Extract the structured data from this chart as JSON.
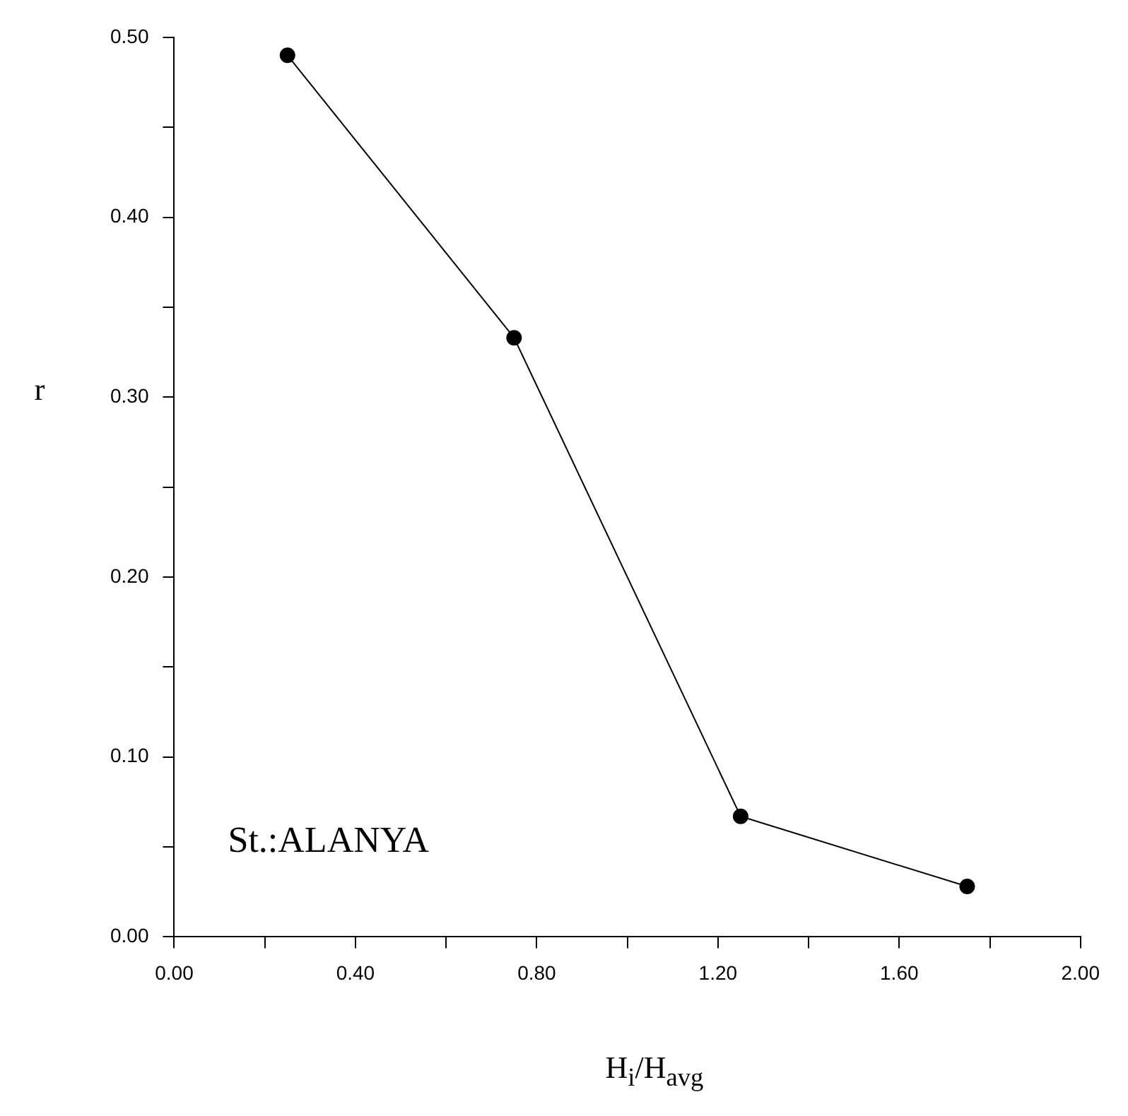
{
  "chart_data": {
    "type": "line",
    "xlabel": "H$_{i}$/H$_{avg}$",
    "ylabel": "r",
    "annotations": [
      "St.:ALANYA"
    ],
    "x": [
      0.25,
      0.75,
      1.25,
      1.75
    ],
    "series": [
      {
        "color": "#000000",
        "values": [
          0.49,
          0.333,
          0.067,
          0.028
        ]
      }
    ],
    "xlim": [
      0,
      2
    ],
    "ylim": [
      0,
      0.5
    ],
    "xticks": [
      {
        "value": 0,
        "label": "0.00"
      },
      {
        "value": 0.2,
        "label": null
      },
      {
        "value": 0.4,
        "label": "0.40"
      },
      {
        "value": 0.6,
        "label": null
      },
      {
        "value": 0.8,
        "label": "0.80"
      },
      {
        "value": 1.0,
        "label": null
      },
      {
        "value": 1.2,
        "label": "1.20"
      },
      {
        "value": 1.4,
        "label": null
      },
      {
        "value": 1.6,
        "label": "1.60"
      },
      {
        "value": 1.8,
        "label": null
      },
      {
        "value": 2.0,
        "label": "2.00"
      }
    ],
    "yticks": [
      {
        "value": 0,
        "label": "0.00"
      },
      {
        "value": 0.05,
        "label": null
      },
      {
        "value": 0.1,
        "label": "0.10"
      },
      {
        "value": 0.15,
        "label": null
      },
      {
        "value": 0.2,
        "label": "0.20"
      },
      {
        "value": 0.25,
        "label": null
      },
      {
        "value": 0.3,
        "label": "0.30"
      },
      {
        "value": 0.35,
        "label": null
      },
      {
        "value": 0.4,
        "label": "0.40"
      },
      {
        "value": 0.45,
        "label": null
      },
      {
        "value": 0.5,
        "label": "0.50"
      }
    ],
    "grid": false,
    "legend": false,
    "marker": "circle",
    "line_style": "solid"
  }
}
